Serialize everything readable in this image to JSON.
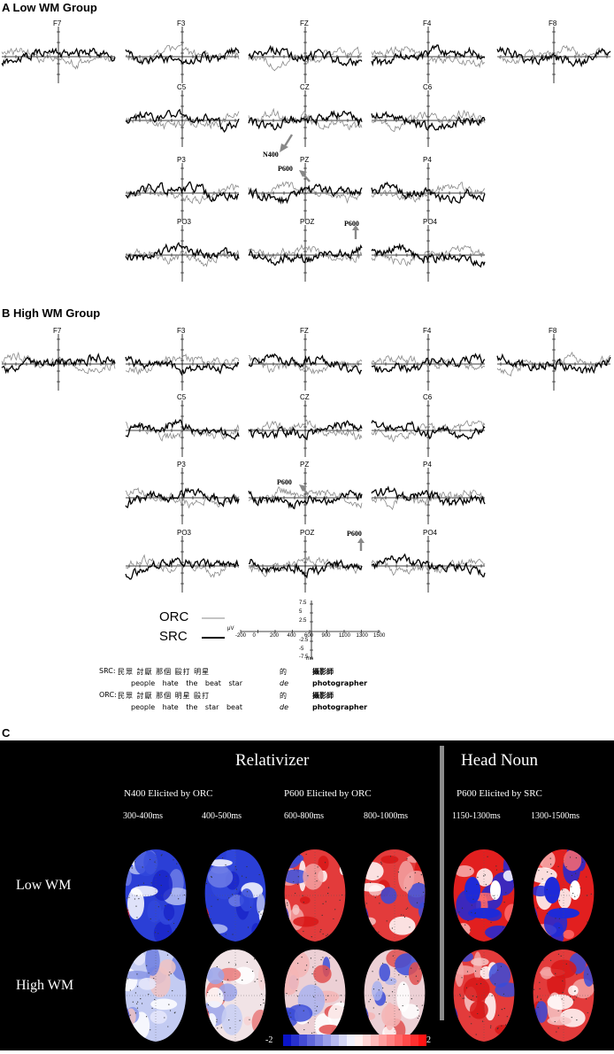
{
  "panel_a": {
    "title": "A Low WM Group"
  },
  "panel_b": {
    "title": "B High WM Group"
  },
  "panel_c": {
    "letter": "C"
  },
  "electrodes": {
    "row1": [
      "F7",
      "F3",
      "FZ",
      "F4",
      "F8"
    ],
    "row2": [
      "C5",
      "CZ",
      "C6"
    ],
    "row3": [
      "P3",
      "PZ",
      "P4"
    ],
    "row4": [
      "PO3",
      "POZ",
      "PO4"
    ]
  },
  "annotations": {
    "n400": "N400",
    "p600": "P600"
  },
  "legend": {
    "orc": "ORC",
    "src": "SRC",
    "orc_color": "#888888",
    "src_color": "#000000"
  },
  "scale": {
    "y_unit": "μV",
    "x_unit": "ms",
    "y_ticks": [
      "7.5",
      "5",
      "2.5",
      "-2.5",
      "-5",
      "-7.5"
    ],
    "x_ticks": [
      "-200",
      "0",
      "200",
      "400",
      "600",
      "900",
      "1100",
      "1300",
      "1500"
    ]
  },
  "stimuli": {
    "src_label": "SRC:",
    "src_chinese": "民眾 討厭 那個 毆打 明星",
    "src_gloss": "people hate  the  beat  star",
    "orc_label": "ORC:",
    "orc_chinese": "民眾 討厭 那個 明星 毆打",
    "orc_gloss": "people hate  the  star  beat",
    "de_char": "的",
    "de_gloss": "de",
    "head_char": "攝影師",
    "head_gloss": "photographer"
  },
  "topo": {
    "relativizer": "Relativizer",
    "head_noun": "Head Noun",
    "n400_orc": "N400 Elicited by ORC",
    "p600_orc": "P600 Elicited by ORC",
    "p600_src": "P600 Elicited by SRC",
    "windows": [
      "300-400ms",
      "400-500ms",
      "600-800ms",
      "800-1000ms",
      "1150-1300ms",
      "1300-1500ms"
    ],
    "low_wm": "Low WM",
    "high_wm": "High WM",
    "colorbar_min": "-2",
    "colorbar_max": "2",
    "maps": {
      "low": [
        "blue",
        "blue",
        "red",
        "red",
        "redstrong",
        "redstrong"
      ],
      "high": [
        "lightblue",
        "lightmixed",
        "mixed",
        "mixed",
        "red",
        "red"
      ]
    }
  }
}
